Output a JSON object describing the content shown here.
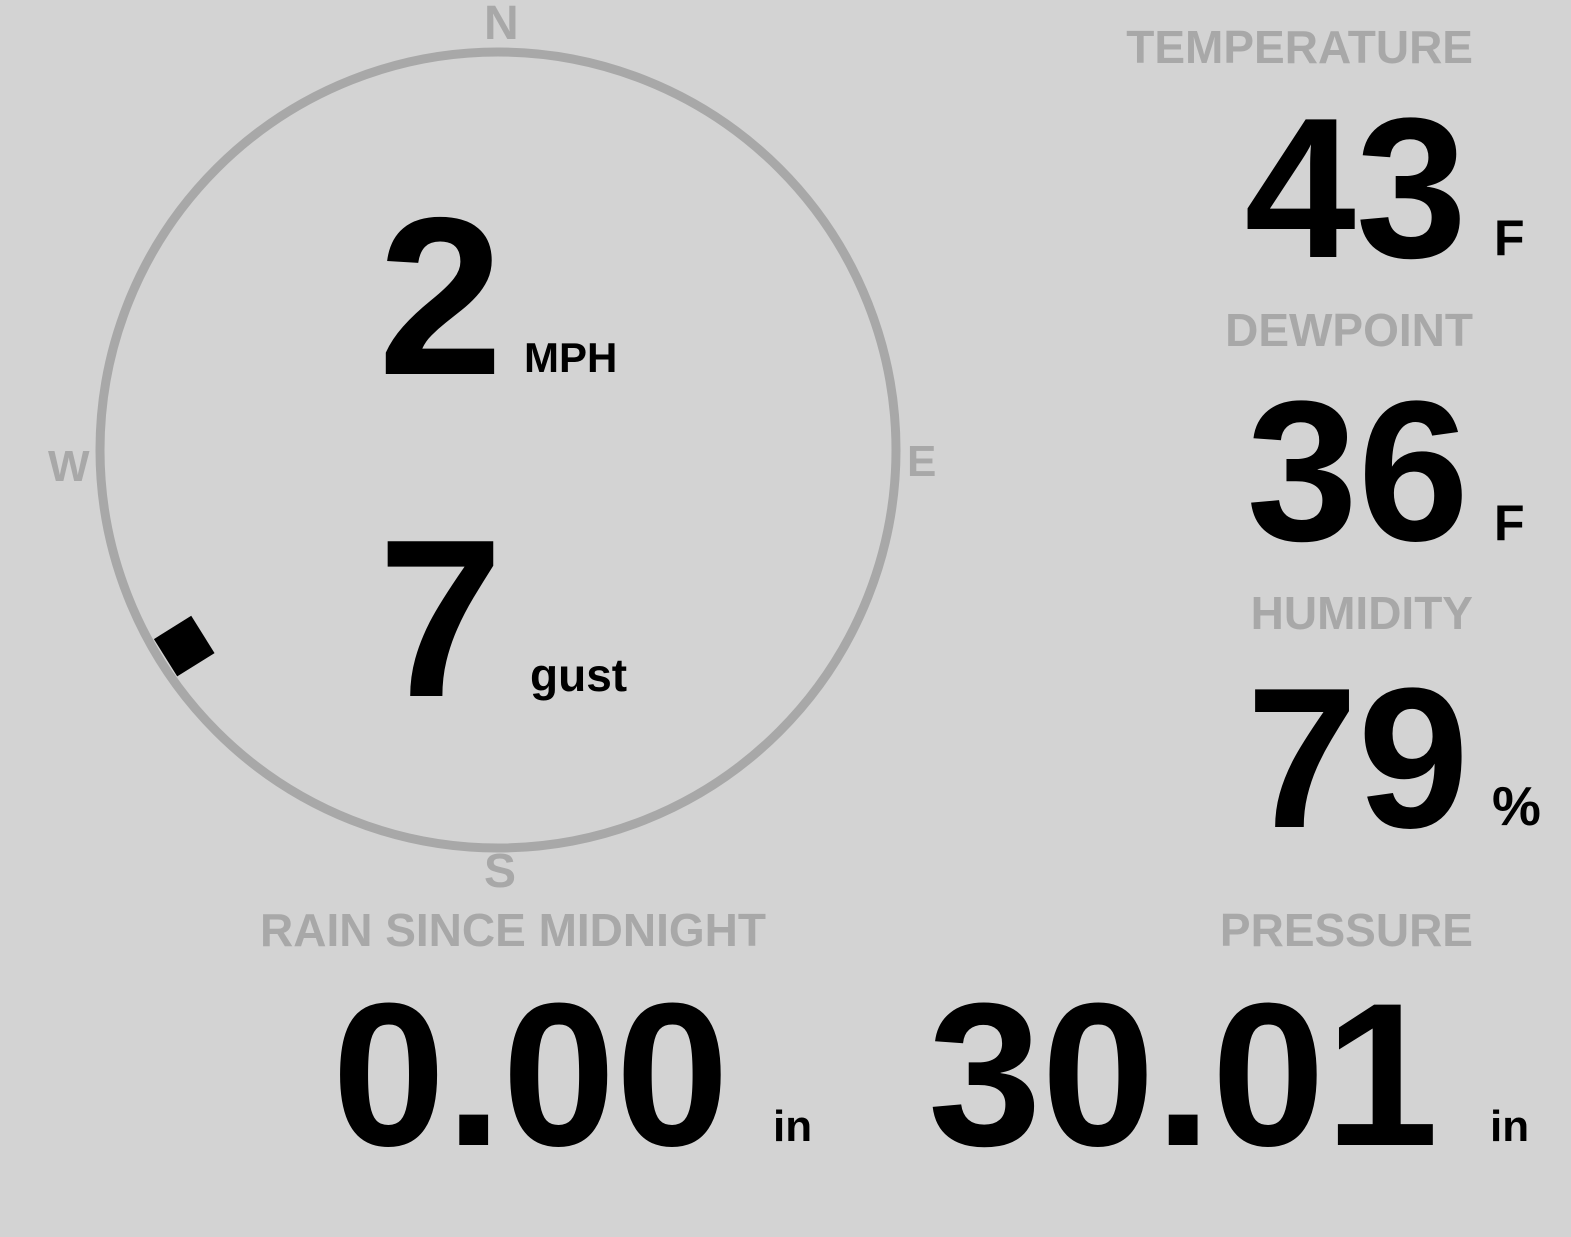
{
  "colors": {
    "background": "#d3d3d3",
    "label": "#a8a8a8",
    "value": "#000000",
    "ring": "#a8a8a8",
    "marker": "#000000"
  },
  "wind": {
    "compass": {
      "n": "N",
      "e": "E",
      "s": "S",
      "w": "W"
    },
    "direction_deg": 238,
    "speed": "2",
    "speed_unit": "MPH",
    "gust": "7",
    "gust_unit": "gust"
  },
  "temperature": {
    "label": "TEMPERATURE",
    "value": "43",
    "unit": "F"
  },
  "dewpoint": {
    "label": "DEWPOINT",
    "value": "36",
    "unit": "F"
  },
  "humidity": {
    "label": "HUMIDITY",
    "value": "79",
    "unit": "%"
  },
  "rain": {
    "label": "RAIN SINCE MIDNIGHT",
    "value": "0.00",
    "unit": "in"
  },
  "pressure": {
    "label": "PRESSURE",
    "value": "30.01",
    "unit": "in"
  }
}
